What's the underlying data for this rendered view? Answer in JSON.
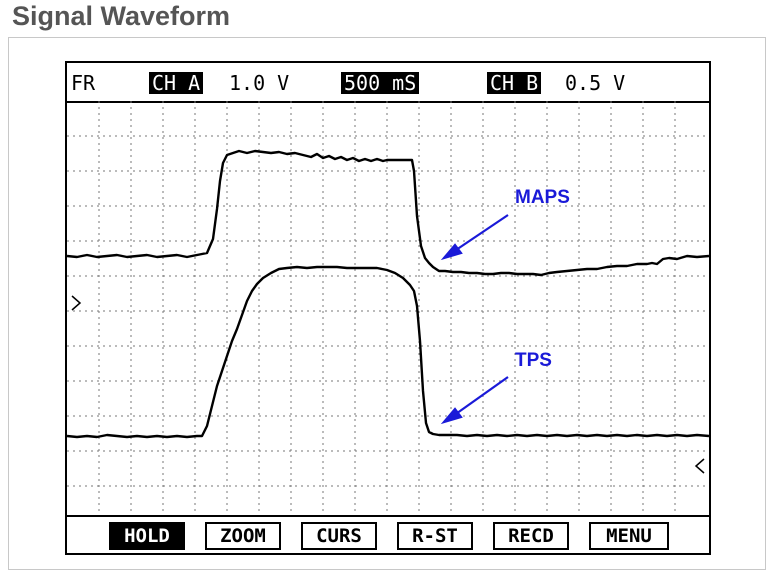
{
  "title": "Signal Waveform",
  "status": {
    "mode": "FR",
    "ch_a_label": "CH A",
    "ch_a_scale": "1.0 V",
    "timebase": "500 mS",
    "ch_b_label": "CH B",
    "ch_b_scale": "0.5 V"
  },
  "annotations": {
    "maps_label": "MAPS",
    "tps_label": "TPS",
    "color": "#1a1ad8"
  },
  "softkeys": [
    {
      "label": "HOLD",
      "active": true
    },
    {
      "label": "ZOOM",
      "active": false
    },
    {
      "label": "CURS",
      "active": false
    },
    {
      "label": "R-ST",
      "active": false
    },
    {
      "label": "RECD",
      "active": false
    },
    {
      "label": "MENU",
      "active": false
    }
  ]
}
